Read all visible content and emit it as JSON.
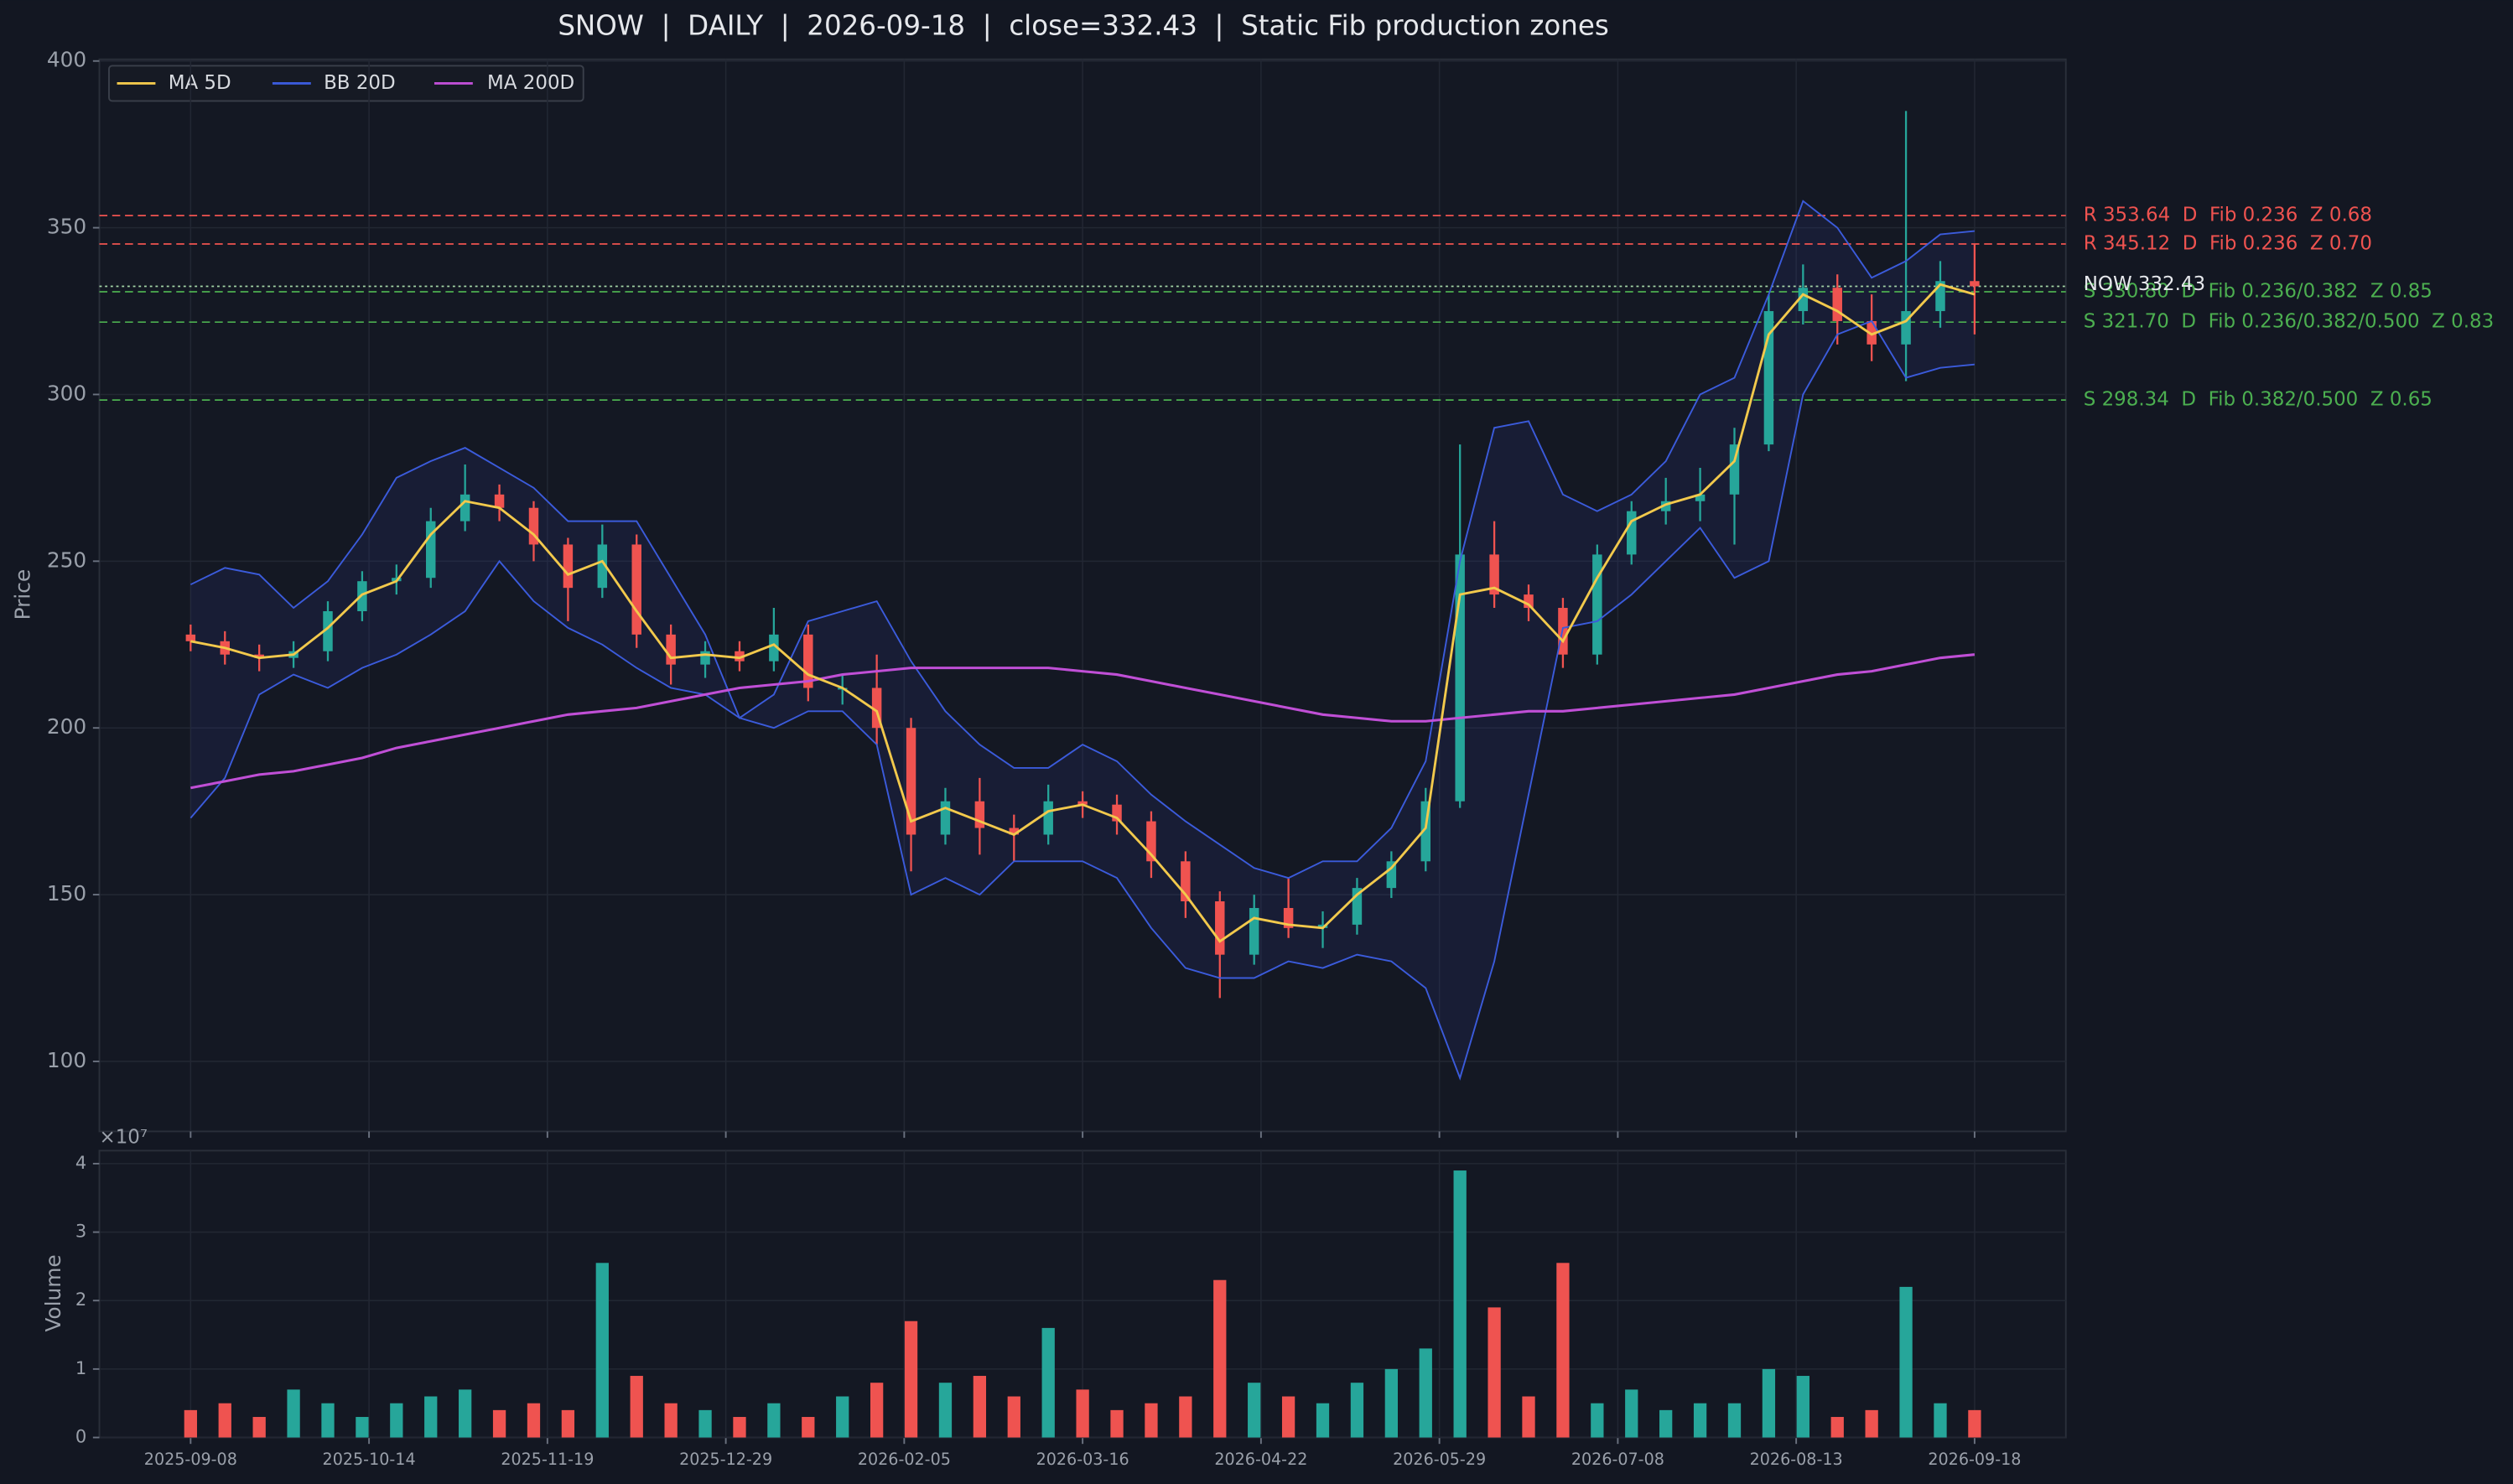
{
  "chart_data": [
    {
      "type": "candlestick",
      "title": "SNOW  |  DAILY  |  2026-09-18  |  close=332.43  |  Static Fib production zones",
      "y_label": "Price",
      "x": [
        0,
        5,
        10,
        15,
        20,
        25,
        30,
        35,
        40,
        45,
        50,
        55,
        60,
        65,
        70,
        75,
        80,
        85,
        90,
        95,
        100,
        105,
        110,
        115,
        120,
        125,
        130,
        135,
        140,
        145,
        150,
        155,
        160,
        165,
        170,
        175,
        180,
        185,
        190,
        195,
        200,
        205,
        210,
        215,
        220,
        225,
        230,
        235,
        240,
        245,
        250,
        255,
        260
      ],
      "open": [
        228,
        226,
        222,
        221,
        223,
        235,
        244,
        245,
        262,
        270,
        266,
        255,
        242,
        255,
        228,
        219,
        223,
        220,
        228,
        212,
        212,
        200,
        168,
        178,
        170,
        168,
        178,
        177,
        172,
        160,
        148,
        132,
        146,
        140,
        141,
        152,
        160,
        178,
        252,
        240,
        236,
        222,
        252,
        265,
        268,
        270,
        285,
        325,
        332,
        322,
        315,
        325,
        334
      ],
      "high": [
        231,
        229,
        225,
        226,
        238,
        247,
        249,
        266,
        279,
        273,
        268,
        257,
        261,
        258,
        231,
        226,
        226,
        236,
        231,
        216,
        222,
        203,
        182,
        185,
        174,
        183,
        181,
        180,
        175,
        163,
        151,
        150,
        155,
        145,
        155,
        163,
        182,
        285,
        262,
        243,
        239,
        255,
        268,
        275,
        278,
        290,
        330,
        339,
        336,
        330,
        385,
        340,
        345
      ],
      "low": [
        223,
        219,
        217,
        218,
        220,
        232,
        240,
        242,
        259,
        262,
        250,
        232,
        239,
        224,
        213,
        215,
        217,
        217,
        208,
        207,
        195,
        157,
        165,
        162,
        160,
        165,
        173,
        168,
        155,
        143,
        119,
        129,
        137,
        134,
        138,
        149,
        157,
        176,
        236,
        232,
        218,
        219,
        249,
        261,
        262,
        255,
        283,
        321,
        315,
        310,
        304,
        320,
        318
      ],
      "close": [
        226,
        222,
        221,
        223,
        235,
        244,
        245,
        262,
        270,
        266,
        255,
        242,
        255,
        228,
        219,
        223,
        220,
        228,
        212,
        212,
        200,
        168,
        178,
        170,
        168,
        178,
        177,
        172,
        160,
        148,
        132,
        146,
        140,
        141,
        152,
        160,
        178,
        252,
        240,
        236,
        222,
        252,
        265,
        268,
        270,
        285,
        325,
        332,
        322,
        315,
        325,
        334,
        332.43
      ],
      "up_color": "#26a69a",
      "down_color": "#ef5350",
      "series": [
        {
          "name": "MA 5D",
          "color": "#f2c94c",
          "values": [
            226,
            224,
            221,
            222,
            230,
            240,
            244,
            258,
            268,
            266,
            258,
            246,
            250,
            235,
            221,
            222,
            221,
            225,
            216,
            212,
            205,
            172,
            176,
            172,
            168,
            175,
            177,
            173,
            162,
            150,
            136,
            143,
            141,
            140,
            150,
            158,
            170,
            240,
            242,
            237,
            226,
            245,
            262,
            267,
            270,
            280,
            318,
            330,
            325,
            318,
            322,
            333,
            330
          ]
        },
        {
          "name": "BB 20D",
          "color": "#3b5bdb",
          "upper": [
            243,
            248,
            246,
            236,
            244,
            258,
            275,
            280,
            284,
            278,
            272,
            262,
            262,
            262,
            245,
            228,
            203,
            210,
            232,
            235,
            238,
            220,
            205,
            195,
            188,
            188,
            195,
            190,
            180,
            172,
            165,
            158,
            155,
            160,
            160,
            170,
            190,
            250,
            290,
            292,
            270,
            265,
            270,
            280,
            300,
            305,
            330,
            358,
            350,
            335,
            340,
            348,
            349
          ],
          "lower": [
            173,
            185,
            210,
            216,
            212,
            218,
            222,
            228,
            235,
            250,
            238,
            230,
            225,
            218,
            212,
            210,
            203,
            200,
            205,
            205,
            195,
            150,
            155,
            150,
            160,
            160,
            160,
            155,
            140,
            128,
            125,
            125,
            130,
            128,
            132,
            130,
            122,
            95,
            130,
            180,
            230,
            232,
            240,
            250,
            260,
            245,
            250,
            300,
            318,
            322,
            305,
            308,
            309
          ]
        },
        {
          "name": "MA 200D",
          "color": "#c04fd6",
          "values": [
            182,
            184,
            186,
            187,
            189,
            191,
            194,
            196,
            198,
            200,
            202,
            204,
            205,
            206,
            208,
            210,
            212,
            213,
            214,
            216,
            217,
            218,
            218,
            218,
            218,
            218,
            217,
            216,
            214,
            212,
            210,
            208,
            206,
            204,
            203,
            202,
            202,
            203,
            204,
            205,
            205,
            206,
            207,
            208,
            209,
            210,
            212,
            214,
            216,
            217,
            219,
            221,
            222
          ]
        }
      ],
      "levels": [
        {
          "value": 353.64,
          "label": "R 353.64  D  Fib 0.236  Z 0.68",
          "color": "#ef5350"
        },
        {
          "value": 345.12,
          "label": "R 345.12  D  Fib 0.236  Z 0.70",
          "color": "#ef5350"
        },
        {
          "value": 330.8,
          "label": "S 330.80  D  Fib 0.236/0.382  Z 0.85",
          "color": "#4caf50"
        },
        {
          "value": 321.7,
          "label": "S 321.70  D  Fib 0.236/0.382/0.500  Z 0.83",
          "color": "#4caf50"
        },
        {
          "value": 298.34,
          "label": "S 298.34  D  Fib 0.382/0.500  Z 0.65",
          "color": "#4caf50"
        }
      ],
      "now": {
        "value": 332.43,
        "label": "NOW 332.43"
      },
      "xlim": [
        -13.3,
        273.3
      ],
      "ylim": [
        79,
        400.5
      ],
      "yticks": [
        100,
        150,
        200,
        250,
        300,
        350,
        400
      ],
      "grid": true,
      "legend": "upper left"
    },
    {
      "type": "bar",
      "y_label": "Volume",
      "y_offset_label": "×10⁷",
      "x": [
        0,
        5,
        10,
        15,
        20,
        25,
        30,
        35,
        40,
        45,
        50,
        55,
        60,
        65,
        70,
        75,
        80,
        85,
        90,
        95,
        100,
        105,
        110,
        115,
        120,
        125,
        130,
        135,
        140,
        145,
        150,
        155,
        160,
        165,
        170,
        175,
        180,
        185,
        190,
        195,
        200,
        205,
        210,
        215,
        220,
        225,
        230,
        235,
        240,
        245,
        250,
        255,
        260
      ],
      "values": [
        0.4,
        0.5,
        0.3,
        0.7,
        0.5,
        0.3,
        0.5,
        0.6,
        0.7,
        0.4,
        0.5,
        0.4,
        2.55,
        0.9,
        0.5,
        0.4,
        0.3,
        0.5,
        0.3,
        0.6,
        0.8,
        1.7,
        0.8,
        0.9,
        0.6,
        1.6,
        0.7,
        0.4,
        0.5,
        0.6,
        2.3,
        0.8,
        0.6,
        0.5,
        0.8,
        1.0,
        1.3,
        3.9,
        1.9,
        0.6,
        2.55,
        0.5,
        0.7,
        0.4,
        0.5,
        0.5,
        1.0,
        0.9,
        0.3,
        0.4,
        2.2,
        0.5,
        0.4
      ],
      "xlim": [
        -13.3,
        273.3
      ],
      "ylim": [
        0,
        4.19
      ],
      "yticks": [
        0,
        1,
        2,
        3,
        4
      ],
      "xticks": [
        {
          "value": 0,
          "label": "2025-09-08"
        },
        {
          "value": 26,
          "label": "2025-10-14"
        },
        {
          "value": 52,
          "label": "2025-11-19"
        },
        {
          "value": 78,
          "label": "2025-12-29"
        },
        {
          "value": 104,
          "label": "2026-02-05"
        },
        {
          "value": 130,
          "label": "2026-03-16"
        },
        {
          "value": 156,
          "label": "2026-04-22"
        },
        {
          "value": 182,
          "label": "2026-05-29"
        },
        {
          "value": 208,
          "label": "2026-07-08"
        },
        {
          "value": 234,
          "label": "2026-08-13"
        },
        {
          "value": 260,
          "label": "2026-09-18"
        }
      ],
      "grid": true
    }
  ]
}
